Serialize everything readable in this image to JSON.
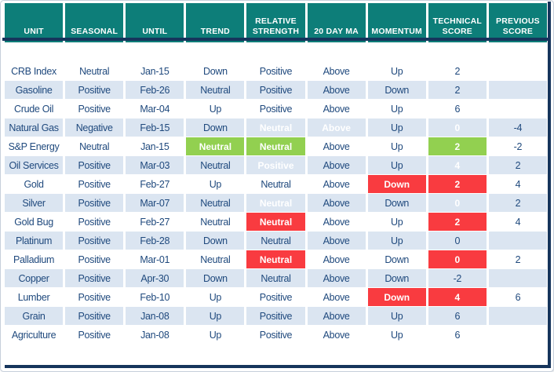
{
  "colors": {
    "header-bg": "#0d7e79",
    "header-text": "#ffffff",
    "line-navy": "#16355c",
    "stripe-bg": "#dbe5f1",
    "cell-text": "#1f497d",
    "hl-green": "#92d050",
    "hl-red": "#f93b40",
    "hl-text": "#ffffff"
  },
  "chart_data": {
    "type": "table",
    "columns": [
      "UNIT",
      "SEASONAL",
      "UNTIL",
      "TREND",
      "RELATIVE STRENGTH",
      "20 DAY MA",
      "MOMENTUM",
      "TECHNICAL SCORE",
      "PREVIOUS SCORE"
    ],
    "rows": [
      [
        "CRB Index",
        "Neutral",
        "Jan-15",
        "Down",
        "Positive",
        "Above",
        "Up",
        "2",
        ""
      ],
      [
        "Gasoline",
        "Positive",
        "Feb-26",
        "Neutral",
        "Positive",
        "Above",
        "Down",
        "2",
        ""
      ],
      [
        "Crude Oil",
        "Positive",
        "Mar-04",
        "Up",
        "Positive",
        "Above",
        "Up",
        "6",
        ""
      ],
      [
        "Natural Gas",
        "Negative",
        "Feb-15",
        "Down",
        {
          "v": "Neutral",
          "hl": "green"
        },
        {
          "v": "Above",
          "hl": "green"
        },
        "Up",
        {
          "v": "0",
          "hl": "green"
        },
        "-4"
      ],
      [
        "S&P Energy",
        "Neutral",
        "Jan-15",
        {
          "v": "Neutral",
          "hl": "green"
        },
        {
          "v": "Neutral",
          "hl": "green"
        },
        "Above",
        "Up",
        {
          "v": "2",
          "hl": "green"
        },
        "-2"
      ],
      [
        "Oil Services",
        "Positive",
        "Mar-03",
        "Neutral",
        {
          "v": "Positive",
          "hl": "green"
        },
        "Above",
        "Up",
        {
          "v": "4",
          "hl": "green"
        },
        "2"
      ],
      [
        "Gold",
        "Positive",
        "Feb-27",
        "Up",
        "Neutral",
        "Above",
        {
          "v": "Down",
          "hl": "red"
        },
        {
          "v": "2",
          "hl": "red"
        },
        "4"
      ],
      [
        "Silver",
        "Positive",
        "Mar-07",
        "Neutral",
        {
          "v": "Neutral",
          "hl": "red"
        },
        "Above",
        "Down",
        {
          "v": "0",
          "hl": "red"
        },
        "2"
      ],
      [
        "Gold Bug",
        "Positive",
        "Feb-27",
        "Neutral",
        {
          "v": "Neutral",
          "hl": "red"
        },
        "Above",
        "Up",
        {
          "v": "2",
          "hl": "red"
        },
        "4"
      ],
      [
        "Platinum",
        "Positive",
        "Feb-28",
        "Down",
        "Neutral",
        "Above",
        "Up",
        "0",
        ""
      ],
      [
        "Palladium",
        "Positive",
        "Mar-01",
        "Neutral",
        {
          "v": "Neutral",
          "hl": "red"
        },
        "Above",
        "Down",
        {
          "v": "0",
          "hl": "red"
        },
        "2"
      ],
      [
        "Copper",
        "Positive",
        "Apr-30",
        "Down",
        "Neutral",
        "Above",
        "Down",
        "-2",
        ""
      ],
      [
        "Lumber",
        "Positive",
        "Feb-10",
        "Up",
        "Positive",
        "Above",
        {
          "v": "Down",
          "hl": "red"
        },
        {
          "v": "4",
          "hl": "red"
        },
        "6"
      ],
      [
        "Grain",
        "Positive",
        "Jan-08",
        "Up",
        "Positive",
        "Above",
        "Up",
        "6",
        ""
      ],
      [
        "Agriculture",
        "Positive",
        "Jan-08",
        "Up",
        "Positive",
        "Above",
        "Up",
        "6",
        ""
      ]
    ]
  }
}
